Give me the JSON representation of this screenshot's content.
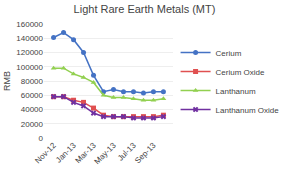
{
  "chart_data": {
    "type": "line",
    "title": "Light Rare Earth Metals (MT)",
    "ylabel": "RMB",
    "categories": [
      "Nov-12",
      null,
      "Jan-13",
      null,
      "Mar-13",
      null,
      "May-13",
      null,
      "Jul-13",
      null,
      "Sep-13",
      null
    ],
    "series": [
      {
        "name": "Cerium",
        "color": "#4472C4",
        "marker": "circle",
        "values": [
          141000,
          148000,
          138000,
          120000,
          88000,
          65000,
          68000,
          65000,
          65000,
          63000,
          65000,
          65000
        ]
      },
      {
        "name": "Cerium Oxide",
        "color": "#E05050",
        "marker": "square",
        "values": [
          58000,
          58000,
          53000,
          50000,
          42000,
          32000,
          30000,
          30000,
          30000,
          30000,
          30000,
          32000
        ]
      },
      {
        "name": "Lanthanum",
        "color": "#92D050",
        "marker": "triangle-up",
        "values": [
          98000,
          98000,
          90000,
          85000,
          78000,
          60000,
          57000,
          57000,
          55000,
          53000,
          53000,
          55000
        ]
      },
      {
        "name": "Lanthanum Oxide",
        "color": "#7030A0",
        "marker": "x",
        "values": [
          58000,
          58000,
          50000,
          45000,
          35000,
          30000,
          30000,
          30000,
          28000,
          28000,
          28000,
          30000
        ]
      }
    ],
    "ylim": [
      0,
      160000
    ],
    "yticks": [
      0,
      20000,
      40000,
      60000,
      80000,
      100000,
      120000,
      140000,
      160000
    ],
    "grid": true,
    "legend": "right"
  }
}
